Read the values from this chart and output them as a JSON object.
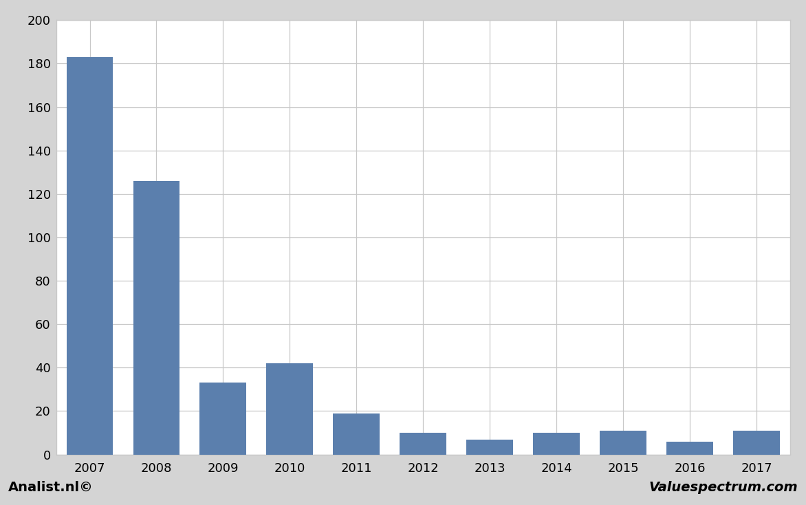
{
  "categories": [
    "2007",
    "2008",
    "2009",
    "2010",
    "2011",
    "2012",
    "2013",
    "2014",
    "2015",
    "2016",
    "2017"
  ],
  "values": [
    183,
    126,
    33,
    42,
    19,
    10,
    7,
    10,
    11,
    6,
    11
  ],
  "bar_color": "#5b7fad",
  "ylim": [
    0,
    200
  ],
  "yticks": [
    0,
    20,
    40,
    60,
    80,
    100,
    120,
    140,
    160,
    180,
    200
  ],
  "background_color": "#d4d4d4",
  "plot_background_color": "#ffffff",
  "grid_color": "#c8c8c8",
  "footer_left": "Analist.nl©",
  "footer_right": "Valuespectrum.com",
  "footer_fontsize": 14,
  "bar_edge_color": "none",
  "bar_linewidth": 0,
  "inner_bg": "#e8e8e8"
}
